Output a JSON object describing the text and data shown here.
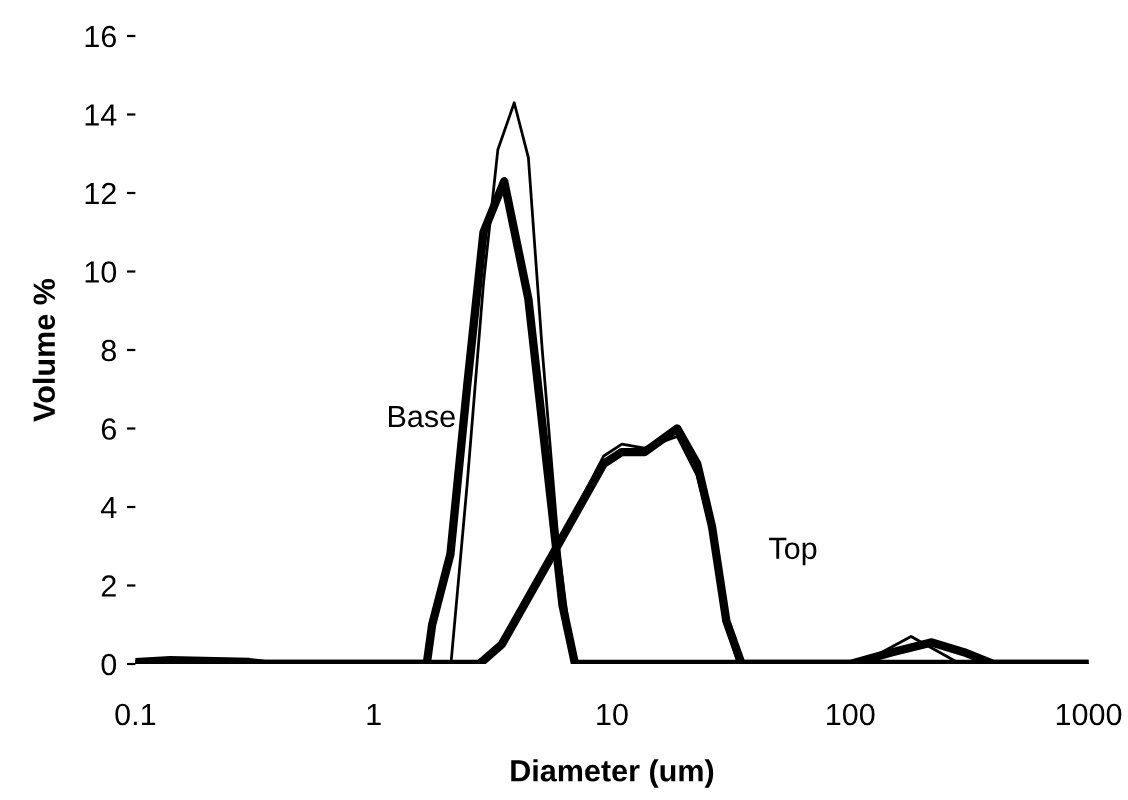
{
  "chart_data": {
    "type": "line",
    "xlabel": "Diameter (um)",
    "ylabel": "Volume %",
    "log": "x",
    "xlim": [
      0.1,
      1000
    ],
    "xticks": [
      0.1,
      1,
      10,
      100,
      1000
    ],
    "ylim": [
      0,
      16
    ],
    "yticks": [
      0,
      2,
      4,
      6,
      8,
      10,
      12,
      14,
      16
    ],
    "grid": false,
    "marker": "none",
    "line_style": "solid",
    "series": [
      {
        "color": "#000000",
        "x": [
          0.1,
          0.14,
          0.3,
          0.35,
          1.67,
          1.76,
          2.1,
          2.47,
          2.89,
          3.53,
          4.46,
          5.44,
          6.2,
          7.0,
          1000
        ],
        "values": [
          0.05,
          0.1,
          0.05,
          0,
          0,
          1,
          2.8,
          7.1,
          11.0,
          12.3,
          9.3,
          4.6,
          1.5,
          0,
          0
        ]
      },
      {
        "color": "#000000",
        "x": [
          0.1,
          2.11,
          2.47,
          2.89,
          3.32,
          3.89,
          4.46,
          5.1,
          6.0,
          6.9,
          1000
        ],
        "values": [
          0,
          0,
          4.6,
          9.7,
          13.1,
          14.3,
          12.9,
          8.0,
          2.8,
          0,
          0
        ]
      },
      {
        "color": "#000000",
        "x": [
          0.1,
          2.78,
          3.45,
          5.65,
          9.24,
          11,
          13.7,
          18.8,
          22.8,
          26.3,
          30.2,
          35,
          100,
          150,
          220,
          300,
          400,
          1000
        ],
        "values": [
          0,
          0,
          0.5,
          2.8,
          5.1,
          5.4,
          5.4,
          6.0,
          5.1,
          3.5,
          1.1,
          0,
          0,
          0.3,
          0.55,
          0.3,
          0,
          0
        ]
      },
      {
        "color": "#000000",
        "x": [
          0.1,
          2.78,
          3.45,
          5.65,
          9.24,
          11,
          13.7,
          18.8,
          22.8,
          26.3,
          30,
          34,
          110,
          180,
          290,
          1000
        ],
        "values": [
          0,
          0,
          0.5,
          2.8,
          5.3,
          5.6,
          5.5,
          5.8,
          4.8,
          3.3,
          1.0,
          0,
          0,
          0.7,
          0,
          0
        ]
      }
    ],
    "annotations": [
      "Base",
      "Top"
    ]
  }
}
